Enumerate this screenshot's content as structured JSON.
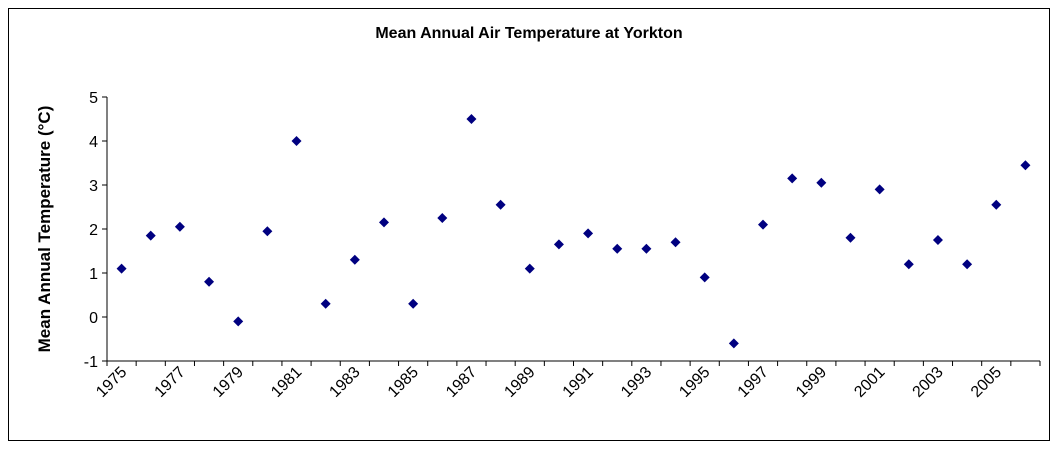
{
  "chart_data": {
    "type": "scatter",
    "title": "Mean Annual Air Temperature at Yorkton",
    "y_label": "Mean Annual Temperature (°C)",
    "categories": [
      "1975",
      null,
      "1977",
      null,
      "1979",
      null,
      "1981",
      null,
      "1983",
      null,
      "1985",
      null,
      "1987",
      null,
      "1989",
      null,
      "1991",
      null,
      "1993",
      null,
      "1995",
      null,
      "1997",
      null,
      "1999",
      null,
      "2001",
      null,
      "2003",
      null,
      "2005",
      null
    ],
    "values": [
      1.1,
      1.85,
      2.05,
      0.8,
      -0.1,
      1.95,
      4.0,
      0.3,
      1.3,
      2.15,
      0.3,
      2.25,
      4.5,
      2.55,
      1.1,
      1.65,
      1.9,
      1.55,
      1.55,
      1.7,
      0.9,
      -0.6,
      2.1,
      3.15,
      3.05,
      1.8,
      2.9,
      1.2,
      1.75,
      1.2,
      2.55,
      3.45
    ],
    "color": "#000080",
    "ylim": [
      -1,
      5
    ],
    "yticks": [
      -1,
      0,
      1,
      2,
      3,
      4,
      5
    ],
    "grid": false
  }
}
